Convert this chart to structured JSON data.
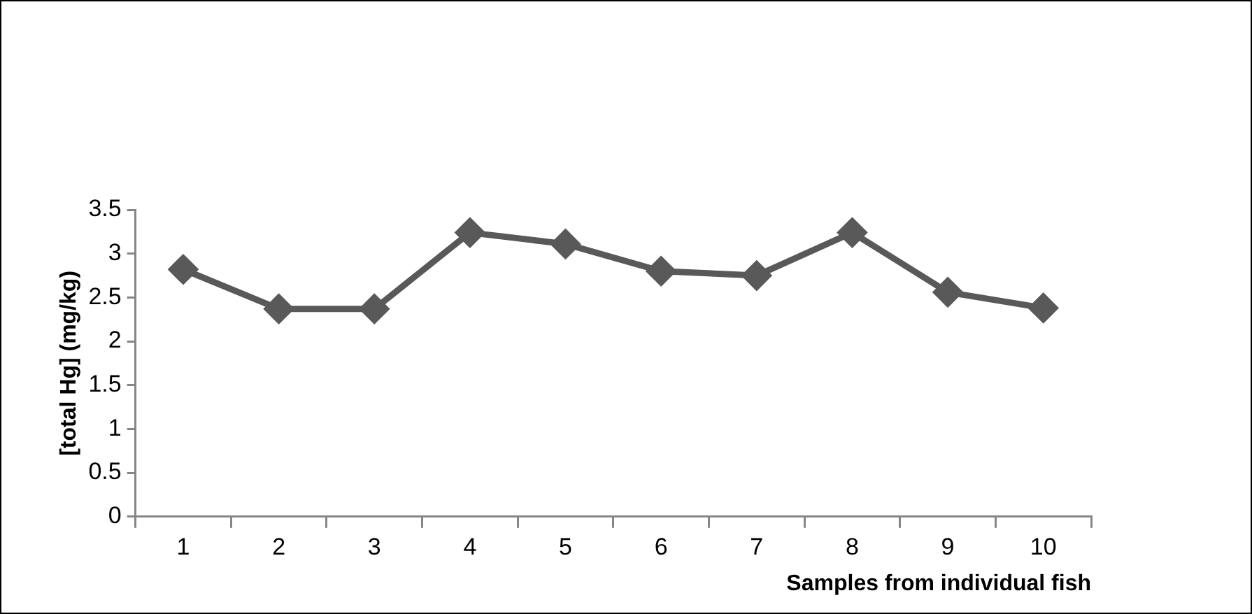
{
  "chart_data": {
    "type": "line",
    "xlabel": "Samples from individual fish",
    "ylabel": "[total Hg] (mg/kg)",
    "categories": [
      "1",
      "2",
      "3",
      "4",
      "5",
      "6",
      "7",
      "8",
      "9",
      "10"
    ],
    "series": [
      {
        "color": "#595959",
        "values": [
          2.82,
          2.37,
          2.37,
          3.24,
          3.11,
          2.8,
          2.75,
          3.24,
          2.56,
          2.38
        ]
      }
    ],
    "ylim": [
      0,
      3.5
    ],
    "yticks": [
      0,
      0.5,
      1,
      1.5,
      2,
      2.5,
      3,
      3.5
    ],
    "grid": false,
    "legend": false,
    "marker": "diamond",
    "line_style": "solid"
  }
}
